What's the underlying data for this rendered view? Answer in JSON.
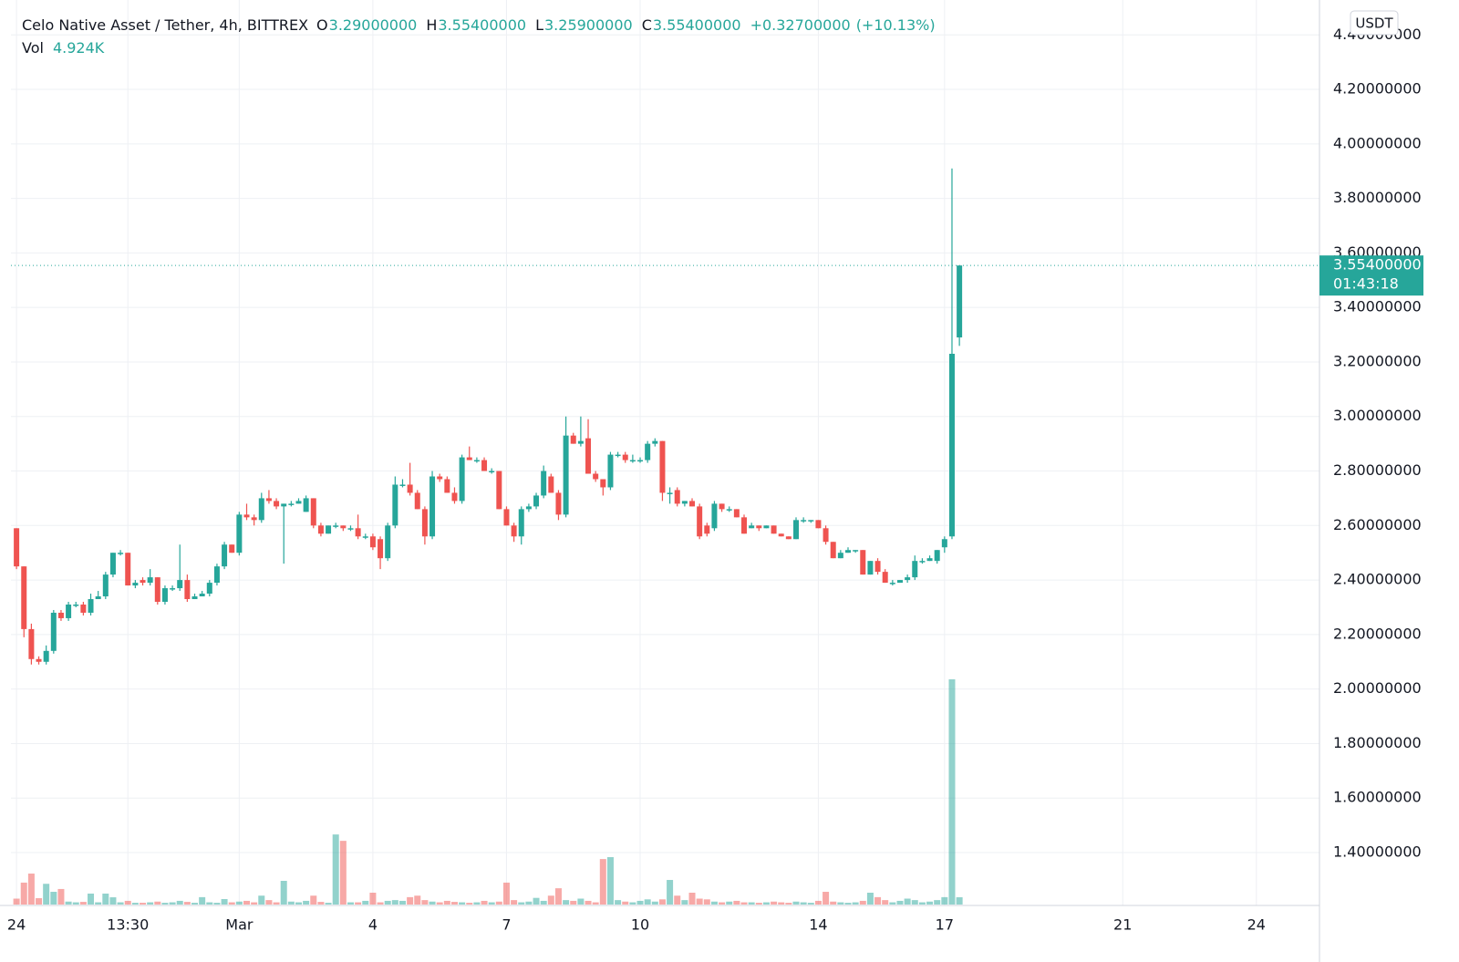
{
  "chart_data": {
    "type": "candlestick",
    "title": "Celo Native Asset / Tether, 4h, BITTREX",
    "ohlc_legend": [
      {
        "key": "O",
        "value": 3.29,
        "label": "3.29000000"
      },
      {
        "key": "H",
        "value": 3.554,
        "label": "3.55400000"
      },
      {
        "key": "L",
        "value": 3.259,
        "label": "3.25900000"
      },
      {
        "key": "C",
        "value": 3.554,
        "label": "3.55400000"
      }
    ],
    "change": {
      "value": 0.327,
      "label": "+0.32700000"
    },
    "change_pct": {
      "value": 10.13,
      "label": "(+10.13%)"
    },
    "volume_legend": {
      "key": "Vol",
      "value": 4924,
      "label": "4.924K"
    },
    "currency": "USDT",
    "last_price": {
      "value": 3.554,
      "label": "3.55400000"
    },
    "countdown": "01:43:18",
    "colors": {
      "up": "#26a69a",
      "down": "#ef5350"
    },
    "grid": true,
    "xlim": [
      -0.75,
      175.5
    ],
    "xticks": [
      {
        "value": 0,
        "label": "24"
      },
      {
        "value": 15,
        "label": "13:30"
      },
      {
        "value": 30,
        "label": "Mar"
      },
      {
        "value": 48,
        "label": "4"
      },
      {
        "value": 66,
        "label": "7"
      },
      {
        "value": 84,
        "label": "10"
      },
      {
        "value": 108,
        "label": "14"
      },
      {
        "value": 125,
        "label": "17"
      },
      {
        "value": 149,
        "label": "21"
      },
      {
        "value": 167,
        "label": "24"
      }
    ],
    "ylim": [
      1.206,
      4.528
    ],
    "yticks": [
      {
        "value": 1.4,
        "label": "1.40000000"
      },
      {
        "value": 1.6,
        "label": "1.60000000"
      },
      {
        "value": 1.8,
        "label": "1.80000000"
      },
      {
        "value": 2.0,
        "label": "2.00000000"
      },
      {
        "value": 2.2,
        "label": "2.20000000"
      },
      {
        "value": 2.4,
        "label": "2.40000000"
      },
      {
        "value": 2.6,
        "label": "2.60000000"
      },
      {
        "value": 2.8,
        "label": "2.80000000"
      },
      {
        "value": 3.0,
        "label": "3.00000000"
      },
      {
        "value": 3.2,
        "label": "3.20000000"
      },
      {
        "value": 3.4,
        "label": "3.40000000"
      },
      {
        "value": 3.6,
        "label": "3.60000000"
      },
      {
        "value": 3.8,
        "label": "3.80000000"
      },
      {
        "value": 4.0,
        "label": "4.00000000"
      },
      {
        "value": 4.2,
        "label": "4.20000000"
      },
      {
        "value": 4.4,
        "label": "4.40000000"
      }
    ],
    "volume_ylim": [
      0,
      200000
    ],
    "ohlc": [
      [
        2.59,
        2.59,
        2.44,
        2.45
      ],
      [
        2.45,
        2.45,
        2.19,
        2.22
      ],
      [
        2.22,
        2.24,
        2.09,
        2.11
      ],
      [
        2.11,
        2.12,
        2.09,
        2.1
      ],
      [
        2.1,
        2.16,
        2.09,
        2.14
      ],
      [
        2.14,
        2.29,
        2.13,
        2.28
      ],
      [
        2.28,
        2.29,
        2.25,
        2.26
      ],
      [
        2.26,
        2.32,
        2.25,
        2.31
      ],
      [
        2.31,
        2.32,
        2.3,
        2.31
      ],
      [
        2.31,
        2.32,
        2.27,
        2.28
      ],
      [
        2.28,
        2.35,
        2.27,
        2.33
      ],
      [
        2.33,
        2.36,
        2.33,
        2.34
      ],
      [
        2.34,
        2.43,
        2.33,
        2.42
      ],
      [
        2.42,
        2.5,
        2.41,
        2.5
      ],
      [
        2.5,
        2.51,
        2.49,
        2.5
      ],
      [
        2.5,
        2.5,
        2.38,
        2.38
      ],
      [
        2.38,
        2.4,
        2.37,
        2.39
      ],
      [
        2.4,
        2.41,
        2.38,
        2.39
      ],
      [
        2.39,
        2.44,
        2.38,
        2.41
      ],
      [
        2.41,
        2.41,
        2.31,
        2.32
      ],
      [
        2.32,
        2.38,
        2.31,
        2.37
      ],
      [
        2.37,
        2.38,
        2.36,
        2.37
      ],
      [
        2.37,
        2.53,
        2.36,
        2.4
      ],
      [
        2.4,
        2.42,
        2.32,
        2.33
      ],
      [
        2.33,
        2.35,
        2.33,
        2.34
      ],
      [
        2.34,
        2.36,
        2.34,
        2.35
      ],
      [
        2.35,
        2.4,
        2.34,
        2.39
      ],
      [
        2.39,
        2.46,
        2.38,
        2.45
      ],
      [
        2.45,
        2.54,
        2.44,
        2.53
      ],
      [
        2.53,
        2.53,
        2.5,
        2.5
      ],
      [
        2.5,
        2.65,
        2.49,
        2.64
      ],
      [
        2.64,
        2.68,
        2.62,
        2.63
      ],
      [
        2.63,
        2.64,
        2.6,
        2.62
      ],
      [
        2.62,
        2.72,
        2.61,
        2.7
      ],
      [
        2.7,
        2.73,
        2.68,
        2.69
      ],
      [
        2.69,
        2.7,
        2.66,
        2.67
      ],
      [
        2.67,
        2.68,
        2.46,
        2.68
      ],
      [
        2.68,
        2.69,
        2.67,
        2.68
      ],
      [
        2.68,
        2.7,
        2.68,
        2.69
      ],
      [
        2.65,
        2.71,
        2.65,
        2.7
      ],
      [
        2.7,
        2.7,
        2.59,
        2.6
      ],
      [
        2.6,
        2.61,
        2.56,
        2.57
      ],
      [
        2.57,
        2.6,
        2.57,
        2.6
      ],
      [
        2.6,
        2.61,
        2.59,
        2.6
      ],
      [
        2.6,
        2.6,
        2.58,
        2.59
      ],
      [
        2.59,
        2.6,
        2.58,
        2.59
      ],
      [
        2.59,
        2.64,
        2.55,
        2.56
      ],
      [
        2.56,
        2.57,
        2.55,
        2.56
      ],
      [
        2.56,
        2.57,
        2.51,
        2.52
      ],
      [
        2.55,
        2.56,
        2.44,
        2.48
      ],
      [
        2.48,
        2.61,
        2.47,
        2.6
      ],
      [
        2.6,
        2.78,
        2.59,
        2.75
      ],
      [
        2.75,
        2.77,
        2.74,
        2.75
      ],
      [
        2.75,
        2.83,
        2.71,
        2.72
      ],
      [
        2.72,
        2.73,
        2.66,
        2.66
      ],
      [
        2.66,
        2.67,
        2.53,
        2.56
      ],
      [
        2.56,
        2.8,
        2.55,
        2.78
      ],
      [
        2.78,
        2.79,
        2.76,
        2.77
      ],
      [
        2.77,
        2.78,
        2.72,
        2.72
      ],
      [
        2.72,
        2.74,
        2.68,
        2.69
      ],
      [
        2.69,
        2.86,
        2.68,
        2.85
      ],
      [
        2.85,
        2.89,
        2.84,
        2.84
      ],
      [
        2.84,
        2.85,
        2.83,
        2.84
      ],
      [
        2.84,
        2.85,
        2.8,
        2.8
      ],
      [
        2.8,
        2.81,
        2.79,
        2.8
      ],
      [
        2.8,
        2.8,
        2.66,
        2.66
      ],
      [
        2.66,
        2.67,
        2.6,
        2.6
      ],
      [
        2.6,
        2.61,
        2.54,
        2.56
      ],
      [
        2.56,
        2.67,
        2.53,
        2.66
      ],
      [
        2.66,
        2.68,
        2.65,
        2.67
      ],
      [
        2.67,
        2.72,
        2.66,
        2.71
      ],
      [
        2.71,
        2.82,
        2.7,
        2.8
      ],
      [
        2.78,
        2.79,
        2.72,
        2.72
      ],
      [
        2.72,
        2.73,
        2.62,
        2.64
      ],
      [
        2.64,
        3.0,
        2.63,
        2.93
      ],
      [
        2.93,
        2.94,
        2.9,
        2.9
      ],
      [
        2.9,
        3.0,
        2.89,
        2.91
      ],
      [
        2.92,
        2.99,
        2.79,
        2.79
      ],
      [
        2.79,
        2.8,
        2.76,
        2.77
      ],
      [
        2.77,
        2.77,
        2.71,
        2.74
      ],
      [
        2.74,
        2.87,
        2.73,
        2.86
      ],
      [
        2.86,
        2.87,
        2.85,
        2.86
      ],
      [
        2.86,
        2.87,
        2.83,
        2.84
      ],
      [
        2.84,
        2.86,
        2.83,
        2.84
      ],
      [
        2.84,
        2.85,
        2.83,
        2.84
      ],
      [
        2.84,
        2.91,
        2.83,
        2.9
      ],
      [
        2.9,
        2.92,
        2.89,
        2.91
      ],
      [
        2.91,
        2.91,
        2.69,
        2.72
      ],
      [
        2.72,
        2.74,
        2.68,
        2.72
      ],
      [
        2.73,
        2.74,
        2.67,
        2.68
      ],
      [
        2.68,
        2.69,
        2.67,
        2.69
      ],
      [
        2.69,
        2.7,
        2.67,
        2.67
      ],
      [
        2.67,
        2.68,
        2.55,
        2.56
      ],
      [
        2.6,
        2.61,
        2.56,
        2.57
      ],
      [
        2.59,
        2.69,
        2.58,
        2.68
      ],
      [
        2.68,
        2.68,
        2.65,
        2.66
      ],
      [
        2.66,
        2.67,
        2.65,
        2.66
      ],
      [
        2.66,
        2.66,
        2.63,
        2.63
      ],
      [
        2.63,
        2.64,
        2.57,
        2.57
      ],
      [
        2.59,
        2.61,
        2.59,
        2.6
      ],
      [
        2.6,
        2.6,
        2.58,
        2.59
      ],
      [
        2.59,
        2.6,
        2.59,
        2.6
      ],
      [
        2.6,
        2.6,
        2.57,
        2.57
      ],
      [
        2.57,
        2.57,
        2.56,
        2.56
      ],
      [
        2.56,
        2.56,
        2.55,
        2.55
      ],
      [
        2.55,
        2.63,
        2.55,
        2.62
      ],
      [
        2.62,
        2.63,
        2.61,
        2.62
      ],
      [
        2.62,
        2.62,
        2.61,
        2.62
      ],
      [
        2.62,
        2.62,
        2.59,
        2.59
      ],
      [
        2.59,
        2.6,
        2.53,
        2.54
      ],
      [
        2.54,
        2.54,
        2.48,
        2.48
      ],
      [
        2.48,
        2.51,
        2.48,
        2.5
      ],
      [
        2.5,
        2.52,
        2.5,
        2.51
      ],
      [
        2.51,
        2.51,
        2.5,
        2.51
      ],
      [
        2.51,
        2.51,
        2.42,
        2.42
      ],
      [
        2.42,
        2.47,
        2.42,
        2.47
      ],
      [
        2.47,
        2.48,
        2.42,
        2.43
      ],
      [
        2.43,
        2.44,
        2.39,
        2.39
      ],
      [
        2.39,
        2.4,
        2.38,
        2.39
      ],
      [
        2.39,
        2.4,
        2.39,
        2.4
      ],
      [
        2.4,
        2.42,
        2.39,
        2.41
      ],
      [
        2.41,
        2.49,
        2.4,
        2.47
      ],
      [
        2.47,
        2.48,
        2.46,
        2.47
      ],
      [
        2.47,
        2.49,
        2.47,
        2.48
      ],
      [
        2.47,
        2.51,
        2.46,
        2.51
      ],
      [
        2.52,
        2.56,
        2.5,
        2.55
      ],
      [
        2.56,
        3.91,
        2.55,
        3.23
      ],
      [
        3.29,
        3.554,
        3.259,
        3.554
      ]
    ],
    "volume": [
      4000,
      14800,
      20900,
      4300,
      14000,
      8600,
      10500,
      2000,
      1500,
      1800,
      7400,
      1500,
      7400,
      4900,
      1500,
      2500,
      1200,
      1200,
      1500,
      2000,
      1200,
      1500,
      2500,
      1800,
      1200,
      5000,
      1500,
      1200,
      3700,
      1500,
      2000,
      2500,
      1500,
      6000,
      3000,
      1500,
      16000,
      2000,
      1500,
      2500,
      6000,
      1800,
      1200,
      47300,
      43000,
      1500,
      1500,
      2500,
      8000,
      1500,
      2500,
      3000,
      2500,
      5000,
      6000,
      3000,
      2000,
      1500,
      2500,
      1800,
      1500,
      1200,
      1500,
      2500,
      1500,
      2000,
      14800,
      3000,
      1500,
      2000,
      4500,
      2500,
      6000,
      11000,
      3000,
      2500,
      4000,
      2500,
      1500,
      30700,
      32000,
      3000,
      2000,
      1500,
      2500,
      3500,
      2000,
      3500,
      16600,
      6000,
      3000,
      8000,
      4000,
      3500,
      2000,
      1500,
      2000,
      2500,
      1500,
      1500,
      1200,
      1500,
      2000,
      1500,
      1200,
      2000,
      1500,
      1200,
      2500,
      8600,
      2000,
      1500,
      1200,
      1500,
      2500,
      8000,
      5000,
      3000,
      1500,
      2500,
      4000,
      3000,
      1500,
      2000,
      3000,
      5000,
      152000,
      4924
    ]
  }
}
